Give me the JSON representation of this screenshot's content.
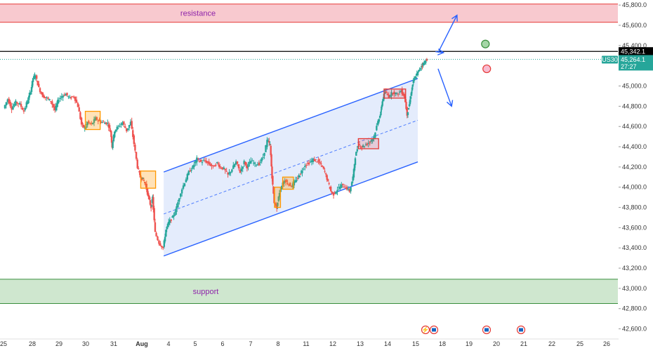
{
  "chart_data": {
    "type": "candlestick",
    "symbol": "US30",
    "x_ticks": [
      "25",
      "28",
      "29",
      "30",
      "31",
      "Aug",
      "4",
      "5",
      "6",
      "7",
      "8",
      "11",
      "12",
      "13",
      "14",
      "15",
      "18",
      "19",
      "20",
      "21",
      "22",
      "25",
      "26"
    ],
    "y_ticks": [
      "45,800.0",
      "45,600.0",
      "45,400.0",
      "45,200.0",
      "45,000.0",
      "44,800.0",
      "44,600.0",
      "44,400.0",
      "44,200.0",
      "44,000.0",
      "43,800.0",
      "43,600.0",
      "43,400.0",
      "43,200.0",
      "43,000.0",
      "42,800.0",
      "42,600.0"
    ],
    "y_range": [
      42500,
      45850
    ],
    "x_range_sessions": [
      0,
      23.6
    ],
    "resistance": {
      "label": "resistance",
      "low": 45630,
      "high": 45810
    },
    "support": {
      "label": "support",
      "low": 42850,
      "high": 43090
    },
    "level_line": {
      "value": 45342.1,
      "label": "45,342.1"
    },
    "current_price": {
      "value": 45264.1,
      "label": "45,264.1",
      "countdown": "27:27"
    },
    "channel": {
      "upper": [
        [
          5.9,
          44150
        ],
        [
          15.3,
          45075
        ]
      ],
      "lower": [
        [
          5.9,
          43320
        ],
        [
          15.3,
          44250
        ]
      ],
      "mid": [
        [
          5.9,
          43735
        ],
        [
          15.3,
          44662
        ]
      ]
    },
    "price_path": [
      [
        0.0,
        44780
      ],
      [
        0.15,
        44870
      ],
      [
        0.3,
        44780
      ],
      [
        0.45,
        44840
      ],
      [
        0.6,
        44820
      ],
      [
        0.75,
        44750
      ],
      [
        0.9,
        44870
      ],
      [
        1.0,
        44950
      ],
      [
        1.08,
        45080
      ],
      [
        1.18,
        45100
      ],
      [
        1.3,
        44980
      ],
      [
        1.45,
        44900
      ],
      [
        1.6,
        44880
      ],
      [
        1.75,
        44850
      ],
      [
        1.9,
        44760
      ],
      [
        2.0,
        44850
      ],
      [
        2.15,
        44900
      ],
      [
        2.3,
        44920
      ],
      [
        2.45,
        44880
      ],
      [
        2.6,
        44900
      ],
      [
        2.75,
        44800
      ],
      [
        2.88,
        44620
      ],
      [
        3.0,
        44580
      ],
      [
        3.1,
        44640
      ],
      [
        3.25,
        44620
      ],
      [
        3.4,
        44680
      ],
      [
        3.55,
        44650
      ],
      [
        3.7,
        44640
      ],
      [
        3.85,
        44630
      ],
      [
        3.95,
        44550
      ],
      [
        4.0,
        44400
      ],
      [
        4.1,
        44560
      ],
      [
        4.25,
        44600
      ],
      [
        4.4,
        44640
      ],
      [
        4.55,
        44560
      ],
      [
        4.7,
        44640
      ],
      [
        4.82,
        44430
      ],
      [
        4.95,
        44200
      ],
      [
        5.05,
        44100
      ],
      [
        5.15,
        44080
      ],
      [
        5.25,
        44020
      ],
      [
        5.35,
        43900
      ],
      [
        5.45,
        43800
      ],
      [
        5.5,
        43900
      ],
      [
        5.6,
        43550
      ],
      [
        5.75,
        43450
      ],
      [
        5.9,
        43400
      ],
      [
        6.0,
        43580
      ],
      [
        6.1,
        43650
      ],
      [
        6.25,
        43700
      ],
      [
        6.4,
        43800
      ],
      [
        6.55,
        43950
      ],
      [
        6.7,
        44050
      ],
      [
        6.85,
        44150
      ],
      [
        7.0,
        44200
      ],
      [
        7.15,
        44280
      ],
      [
        7.3,
        44250
      ],
      [
        7.45,
        44260
      ],
      [
        7.6,
        44230
      ],
      [
        7.75,
        44200
      ],
      [
        7.9,
        44240
      ],
      [
        8.0,
        44200
      ],
      [
        8.15,
        44180
      ],
      [
        8.3,
        44120
      ],
      [
        8.45,
        44180
      ],
      [
        8.6,
        44250
      ],
      [
        8.75,
        44150
      ],
      [
        8.9,
        44250
      ],
      [
        9.0,
        44200
      ],
      [
        9.15,
        44260
      ],
      [
        9.3,
        44230
      ],
      [
        9.45,
        44230
      ],
      [
        9.6,
        44300
      ],
      [
        9.75,
        44460
      ],
      [
        9.85,
        44420
      ],
      [
        9.92,
        44100
      ],
      [
        10.0,
        43850
      ],
      [
        10.1,
        43800
      ],
      [
        10.2,
        43950
      ],
      [
        10.3,
        44020
      ],
      [
        10.4,
        44070
      ],
      [
        10.5,
        44040
      ],
      [
        10.65,
        44010
      ],
      [
        10.8,
        44060
      ],
      [
        10.92,
        44110
      ],
      [
        11.0,
        44150
      ],
      [
        11.15,
        44220
      ],
      [
        11.3,
        44240
      ],
      [
        11.45,
        44270
      ],
      [
        11.6,
        44260
      ],
      [
        11.75,
        44220
      ],
      [
        11.88,
        44150
      ],
      [
        12.0,
        44050
      ],
      [
        12.1,
        43960
      ],
      [
        12.2,
        43930
      ],
      [
        12.35,
        43980
      ],
      [
        12.5,
        44020
      ],
      [
        12.65,
        44000
      ],
      [
        12.8,
        43960
      ],
      [
        12.92,
        44100
      ],
      [
        13.0,
        44300
      ],
      [
        13.12,
        44420
      ],
      [
        13.25,
        44400
      ],
      [
        13.4,
        44420
      ],
      [
        13.55,
        44450
      ],
      [
        13.7,
        44500
      ],
      [
        13.85,
        44650
      ],
      [
        13.95,
        44750
      ],
      [
        14.0,
        44850
      ],
      [
        14.1,
        44940
      ],
      [
        14.25,
        44900
      ],
      [
        14.4,
        44940
      ],
      [
        14.55,
        44920
      ],
      [
        14.7,
        44950
      ],
      [
        14.82,
        44900
      ],
      [
        14.92,
        44720
      ],
      [
        15.0,
        44820
      ],
      [
        15.08,
        44950
      ],
      [
        15.15,
        45050
      ],
      [
        15.25,
        45100
      ],
      [
        15.35,
        45150
      ],
      [
        15.45,
        45200
      ],
      [
        15.55,
        45230
      ],
      [
        15.65,
        45264
      ]
    ],
    "boxes": [
      {
        "color": "orange",
        "x0": 3.0,
        "x1": 3.55,
        "y0": 44570,
        "y1": 44750
      },
      {
        "color": "orange",
        "x0": 5.05,
        "x1": 5.6,
        "y0": 43990,
        "y1": 44160
      },
      {
        "color": "orange",
        "x0": 10.0,
        "x1": 10.22,
        "y0": 43800,
        "y1": 44000
      },
      {
        "color": "orange",
        "x0": 10.3,
        "x1": 10.7,
        "y0": 43980,
        "y1": 44100
      },
      {
        "color": "red",
        "x0": 13.1,
        "x1": 13.85,
        "y0": 44380,
        "y1": 44480
      },
      {
        "color": "red",
        "x0": 14.05,
        "x1": 14.85,
        "y0": 44880,
        "y1": 44970
      }
    ],
    "arrows": [
      {
        "direction": "up",
        "from": [
          16.05,
          45330
        ],
        "to": [
          16.75,
          45700
        ]
      },
      {
        "direction": "down",
        "from": [
          16.05,
          45170
        ],
        "to": [
          16.55,
          44800
        ]
      },
      {
        "direction": "marker",
        "from": [
          15.95,
          45340
        ],
        "to": [
          16.25,
          45330
        ]
      }
    ],
    "markers": [
      {
        "color": "green",
        "x": 17.8,
        "y": 45415
      },
      {
        "color": "red",
        "x": 17.85,
        "y": 45170
      }
    ],
    "events": [
      {
        "x": 15.8,
        "glyph": "⚡"
      },
      {
        "x": 16.0,
        "glyph": ""
      },
      {
        "x": 18.3,
        "glyph": ""
      },
      {
        "x": 19.6,
        "glyph": ""
      }
    ],
    "colors": {
      "bull": "#26a69a",
      "bear": "#ef5350",
      "channel_line": "#2962ff",
      "channel_fill": "#dbe6fb",
      "resistance_fill": "#f8c9cf",
      "resistance_line": "#e53935",
      "support_fill": "#cfe7cf",
      "support_line": "#388e3c",
      "zone_text": "#8e24aa",
      "tag_bg": "#26a69a",
      "level_tag_bg": "#000000",
      "orange_box": "#ff9800",
      "red_box": "#e53935"
    }
  }
}
